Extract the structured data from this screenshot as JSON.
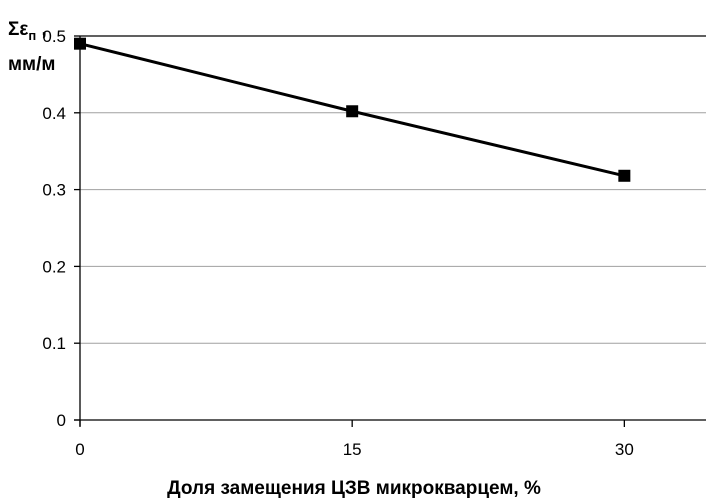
{
  "chart_data": {
    "type": "line",
    "title": "",
    "xlabel": "Доля замещения ЦЗВ микрокварцем, %",
    "ylabel": {
      "symbol": "Σε",
      "subscript": "п",
      "suffix": " ,",
      "unit": "мм/м"
    },
    "x": [
      0,
      15,
      30
    ],
    "x_ticks": [
      "0",
      "15",
      "30"
    ],
    "y_ticks": [
      "0",
      "0.1",
      "0.2",
      "0.3",
      "0.4",
      "0.5"
    ],
    "xlim": [
      0,
      34.5
    ],
    "ylim": [
      0,
      0.5
    ],
    "grid": true,
    "legend": "none",
    "series": [
      {
        "values": [
          0.49,
          0.402,
          0.318
        ],
        "color": "#000000",
        "marker": "square"
      }
    ]
  }
}
